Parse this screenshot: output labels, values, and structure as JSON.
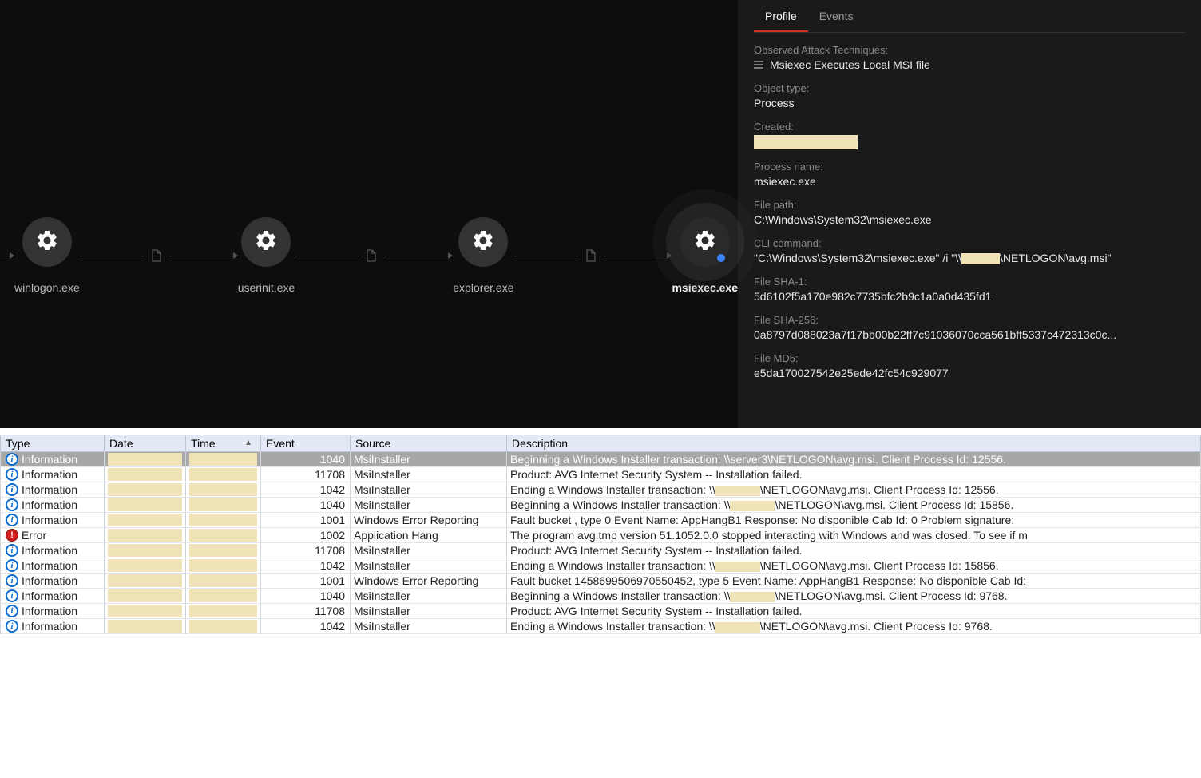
{
  "chain": {
    "nodes": [
      {
        "label": "winlogon.exe",
        "selected": false
      },
      {
        "label": "userinit.exe",
        "selected": false
      },
      {
        "label": "explorer.exe",
        "selected": false
      },
      {
        "label": "msiexec.exe",
        "selected": true
      }
    ]
  },
  "panel": {
    "tabs": {
      "profile": "Profile",
      "events": "Events",
      "active": "profile"
    },
    "attack_label": "Observed Attack Techniques:",
    "attack_tech": "Msiexec Executes Local MSI file",
    "object_type_label": "Object type:",
    "object_type": "Process",
    "created_label": "Created:",
    "process_name_label": "Process name:",
    "process_name": "msiexec.exe",
    "file_path_label": "File path:",
    "file_path": "C:\\Windows\\System32\\msiexec.exe",
    "cli_label": "CLI command:",
    "cli_pre": "\"C:\\Windows\\System32\\msiexec.exe\" /i \"\\\\",
    "cli_post": "\\NETLOGON\\avg.msi\"",
    "sha1_label": "File SHA-1:",
    "sha1": "5d6102f5a170e982c7735bfc2b9c1a0a0d435fd1",
    "sha256_label": "File SHA-256:",
    "sha256": "0a8797d088023a7f17bb00b22ff7c91036070cca561bff5337c472313c0c...",
    "md5_label": "File MD5:",
    "md5": "e5da170027542e25ede42fc54c929077"
  },
  "log": {
    "columns": {
      "type": "Type",
      "date": "Date",
      "time": "Time",
      "event": "Event",
      "source": "Source",
      "desc": "Description"
    },
    "rows": [
      {
        "type": "Information",
        "level": "info",
        "event": "1040",
        "source": "MsiInstaller",
        "desc_pre": "Beginning a Windows Installer transaction: \\\\server3\\NETLOGON\\avg.msi. Client Process Id: 12556.",
        "selected": true,
        "redact_in_desc": false
      },
      {
        "type": "Information",
        "level": "info",
        "event": "11708",
        "source": "MsiInstaller",
        "desc_pre": "Product: AVG Internet Security System -- Installation failed.",
        "redact_in_desc": false
      },
      {
        "type": "Information",
        "level": "info",
        "event": "1042",
        "source": "MsiInstaller",
        "desc_pre": "Ending a Windows Installer transaction: \\\\",
        "desc_post": "\\NETLOGON\\avg.msi. Client Process Id: 12556.",
        "redact_in_desc": true
      },
      {
        "type": "Information",
        "level": "info",
        "event": "1040",
        "source": "MsiInstaller",
        "desc_pre": "Beginning a Windows Installer transaction: \\\\",
        "desc_post": "\\NETLOGON\\avg.msi. Client Process Id: 15856.",
        "redact_in_desc": true
      },
      {
        "type": "Information",
        "level": "info",
        "event": "1001",
        "source": "Windows Error Reporting",
        "desc_pre": "Fault bucket , type 0  Event Name: AppHangB1  Response: No disponible  Cab Id: 0   Problem signature:",
        "redact_in_desc": false
      },
      {
        "type": "Error",
        "level": "error",
        "event": "1002",
        "source": "Application Hang",
        "desc_pre": "The program avg.tmp version 51.1052.0.0 stopped interacting with Windows and was closed. To see if m",
        "redact_in_desc": false
      },
      {
        "type": "Information",
        "level": "info",
        "event": "11708",
        "source": "MsiInstaller",
        "desc_pre": "Product: AVG Internet Security System -- Installation failed.",
        "redact_in_desc": false
      },
      {
        "type": "Information",
        "level": "info",
        "event": "1042",
        "source": "MsiInstaller",
        "desc_pre": "Ending a Windows Installer transaction: \\\\",
        "desc_post": "\\NETLOGON\\avg.msi. Client Process Id: 15856.",
        "redact_in_desc": true
      },
      {
        "type": "Information",
        "level": "info",
        "event": "1001",
        "source": "Windows Error Reporting",
        "desc_pre": "Fault bucket 1458699506970550452, type 5  Event Name: AppHangB1  Response: No disponible  Cab Id:",
        "redact_in_desc": false
      },
      {
        "type": "Information",
        "level": "info",
        "event": "1040",
        "source": "MsiInstaller",
        "desc_pre": "Beginning a Windows Installer transaction: \\\\",
        "desc_post": "\\NETLOGON\\avg.msi. Client Process Id: 9768.",
        "redact_in_desc": true
      },
      {
        "type": "Information",
        "level": "info",
        "event": "11708",
        "source": "MsiInstaller",
        "desc_pre": "Product: AVG Internet Security System -- Installation failed.",
        "redact_in_desc": false
      },
      {
        "type": "Information",
        "level": "info",
        "event": "1042",
        "source": "MsiInstaller",
        "desc_pre": "Ending a Windows Installer transaction: \\\\",
        "desc_post": "\\NETLOGON\\avg.msi. Client Process Id: 9768.",
        "redact_in_desc": true
      }
    ]
  },
  "colors": {
    "dark_bg": "#0d0d0d",
    "panel_bg": "#1a1a1a",
    "accent_red": "#d93025",
    "node_bg": "#333",
    "header_bg": "#e3eaf5",
    "redact": "#f0e3b8",
    "info_blue": "#0b6bd4",
    "error_red": "#d01f1f",
    "selected_row": "#a7a7a7"
  }
}
